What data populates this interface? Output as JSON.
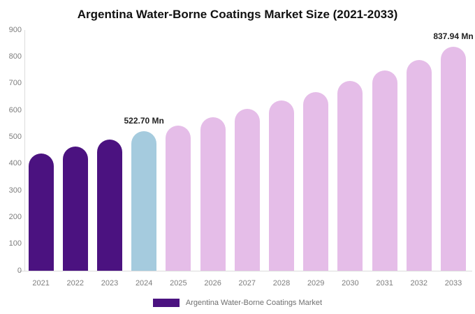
{
  "title": "Argentina Water-Borne Coatings Market Size (2021-2033)",
  "legend": {
    "label": "Argentina Water-Borne Coatings Market",
    "swatch_color": "#4B1280"
  },
  "colors": {
    "bar_past": "#4B1280",
    "bar_current": "#A5CBDE",
    "bar_forecast": "#E5BDE8",
    "axis_line": "#dcdcdc",
    "tick_text": "#7d7d7d",
    "annotation_text": "#222222"
  },
  "chart_data": {
    "type": "bar",
    "title": "Argentina Water-Borne Coatings Market Size (2021-2033)",
    "xlabel": "",
    "ylabel": "",
    "categories": [
      "2021",
      "2022",
      "2023",
      "2024",
      "2025",
      "2026",
      "2027",
      "2028",
      "2029",
      "2030",
      "2031",
      "2032",
      "2033"
    ],
    "values": [
      438,
      464,
      490,
      522.7,
      543,
      574,
      606,
      637,
      669,
      710,
      748,
      788,
      837.94
    ],
    "bar_colors": [
      "#4B1280",
      "#4B1280",
      "#4B1280",
      "#A5CBDE",
      "#E5BDE8",
      "#E5BDE8",
      "#E5BDE8",
      "#E5BDE8",
      "#E5BDE8",
      "#E5BDE8",
      "#E5BDE8",
      "#E5BDE8",
      "#E5BDE8"
    ],
    "annotations": [
      {
        "category": "2024",
        "text": "522.70 Mn"
      },
      {
        "category": "2033",
        "text": "837.94 Mn"
      }
    ],
    "ylim": [
      0,
      900
    ],
    "yticks": [
      0,
      100,
      200,
      300,
      400,
      500,
      600,
      700,
      800,
      900
    ],
    "grid": false,
    "legend_position": "bottom",
    "legend_entries": [
      "Argentina Water-Borne Coatings Market"
    ]
  }
}
